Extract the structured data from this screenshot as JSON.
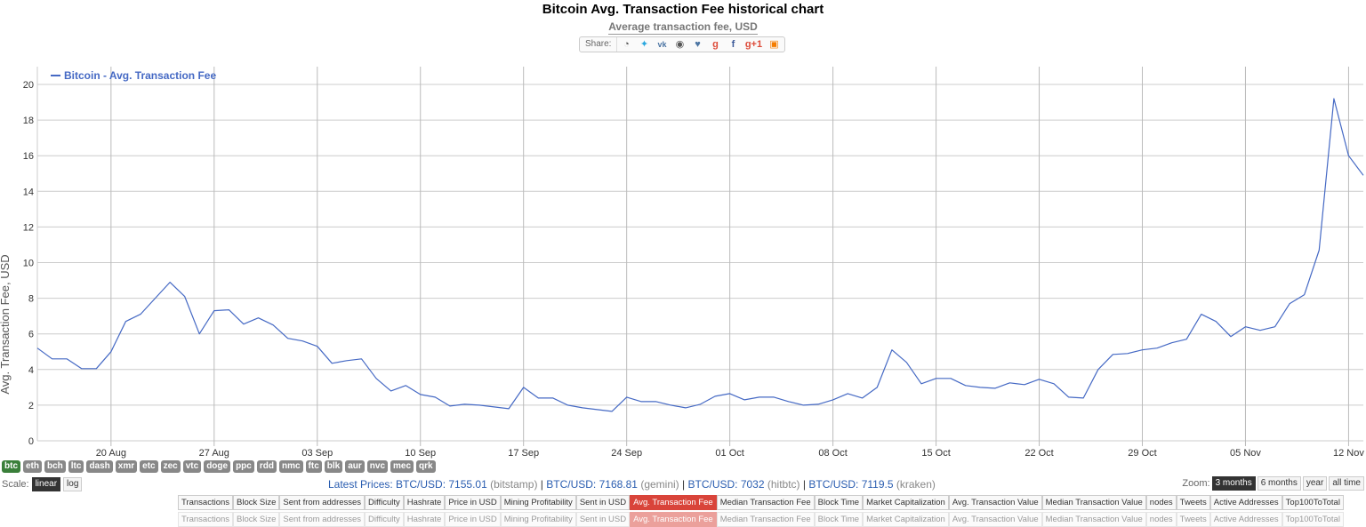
{
  "header": {
    "title": "Bitcoin Avg. Transaction Fee historical chart",
    "subtitle": "Average transaction fee, USD",
    "share_label": "Share:",
    "share_icons": [
      "reddit-icon",
      "twitter-icon",
      "vk-icon",
      "weibo-icon",
      "like-icon",
      "google-plus-icon",
      "facebook-icon",
      "google-plus-one-icon",
      "blogger-icon"
    ]
  },
  "chart_data": {
    "type": "line",
    "ylabel": "Avg. Transaction Fee, USD",
    "ylim": [
      0,
      20
    ],
    "yticks": [
      0,
      2,
      4,
      6,
      8,
      10,
      12,
      14,
      16,
      18,
      20
    ],
    "x_start": "2017-08-15",
    "x_end": "2017-11-13",
    "xticks": [
      {
        "date": "2017-08-20",
        "label": "20 Aug"
      },
      {
        "date": "2017-08-27",
        "label": "27 Aug"
      },
      {
        "date": "2017-09-03",
        "label": "03 Sep"
      },
      {
        "date": "2017-09-10",
        "label": "10 Sep"
      },
      {
        "date": "2017-09-17",
        "label": "17 Sep"
      },
      {
        "date": "2017-09-24",
        "label": "24 Sep"
      },
      {
        "date": "2017-10-01",
        "label": "01 Oct"
      },
      {
        "date": "2017-10-08",
        "label": "08 Oct"
      },
      {
        "date": "2017-10-15",
        "label": "15 Oct"
      },
      {
        "date": "2017-10-22",
        "label": "22 Oct"
      },
      {
        "date": "2017-10-29",
        "label": "29 Oct"
      },
      {
        "date": "2017-11-05",
        "label": "05 Nov"
      },
      {
        "date": "2017-11-12",
        "label": "12 Nov"
      }
    ],
    "grid": true,
    "legend_position": "top-left",
    "series": [
      {
        "name": "Bitcoin - Avg. Transaction Fee",
        "color": "#4569c4",
        "x": [
          "2017-08-15",
          "2017-08-16",
          "2017-08-17",
          "2017-08-18",
          "2017-08-19",
          "2017-08-20",
          "2017-08-21",
          "2017-08-22",
          "2017-08-23",
          "2017-08-24",
          "2017-08-25",
          "2017-08-26",
          "2017-08-27",
          "2017-08-28",
          "2017-08-29",
          "2017-08-30",
          "2017-08-31",
          "2017-09-01",
          "2017-09-02",
          "2017-09-03",
          "2017-09-04",
          "2017-09-05",
          "2017-09-06",
          "2017-09-07",
          "2017-09-08",
          "2017-09-09",
          "2017-09-10",
          "2017-09-11",
          "2017-09-12",
          "2017-09-13",
          "2017-09-14",
          "2017-09-15",
          "2017-09-16",
          "2017-09-17",
          "2017-09-18",
          "2017-09-19",
          "2017-09-20",
          "2017-09-21",
          "2017-09-22",
          "2017-09-23",
          "2017-09-24",
          "2017-09-25",
          "2017-09-26",
          "2017-09-27",
          "2017-09-28",
          "2017-09-29",
          "2017-09-30",
          "2017-10-01",
          "2017-10-02",
          "2017-10-03",
          "2017-10-04",
          "2017-10-05",
          "2017-10-06",
          "2017-10-07",
          "2017-10-08",
          "2017-10-09",
          "2017-10-10",
          "2017-10-11",
          "2017-10-12",
          "2017-10-13",
          "2017-10-14",
          "2017-10-15",
          "2017-10-16",
          "2017-10-17",
          "2017-10-18",
          "2017-10-19",
          "2017-10-20",
          "2017-10-21",
          "2017-10-22",
          "2017-10-23",
          "2017-10-24",
          "2017-10-25",
          "2017-10-26",
          "2017-10-27",
          "2017-10-28",
          "2017-10-29",
          "2017-10-30",
          "2017-10-31",
          "2017-11-01",
          "2017-11-02",
          "2017-11-03",
          "2017-11-04",
          "2017-11-05",
          "2017-11-06",
          "2017-11-07",
          "2017-11-08",
          "2017-11-09",
          "2017-11-10",
          "2017-11-11",
          "2017-11-12",
          "2017-11-13",
          "2017-11-14"
        ],
        "values": [
          5.2,
          4.6,
          4.6,
          4.05,
          4.05,
          5.0,
          6.7,
          7.1,
          8.0,
          8.9,
          8.1,
          6.0,
          7.3,
          7.35,
          6.55,
          6.9,
          6.5,
          5.75,
          5.6,
          5.3,
          4.35,
          4.5,
          4.6,
          3.5,
          2.8,
          3.1,
          2.6,
          2.45,
          1.95,
          2.05,
          2.0,
          1.9,
          1.8,
          3.0,
          2.4,
          2.4,
          2.0,
          1.85,
          1.75,
          1.65,
          2.45,
          2.2,
          2.2,
          2.0,
          1.85,
          2.05,
          2.5,
          2.65,
          2.3,
          2.45,
          2.45,
          2.2,
          2.0,
          2.05,
          2.3,
          2.65,
          2.4,
          3.0,
          5.1,
          4.4,
          3.2,
          3.5,
          3.5,
          3.1,
          3.0,
          2.95,
          3.25,
          3.15,
          3.45,
          3.2,
          2.45,
          2.4,
          4.0,
          4.85,
          4.9,
          5.1,
          5.2,
          5.5,
          5.7,
          7.1,
          6.7,
          5.85,
          6.4,
          6.2,
          6.4,
          7.7,
          8.2,
          10.7,
          19.2,
          16.0,
          14.9,
          14.9
        ]
      }
    ]
  },
  "coins": {
    "items": [
      "btc",
      "eth",
      "bch",
      "ltc",
      "dash",
      "xmr",
      "etc",
      "zec",
      "vtc",
      "doge",
      "ppc",
      "rdd",
      "nmc",
      "ftc",
      "blk",
      "aur",
      "nvc",
      "mec",
      "qrk"
    ],
    "active": "btc"
  },
  "scale": {
    "label": "Scale:",
    "options": [
      "linear",
      "log"
    ],
    "active": "linear"
  },
  "prices": {
    "label": "Latest Prices:",
    "items": [
      {
        "pair": "BTC/USD: 7155.01",
        "source": "(bitstamp)"
      },
      {
        "pair": "BTC/USD: 7168.81",
        "source": "(gemini)"
      },
      {
        "pair": "BTC/USD: 7032",
        "source": "(hitbtc)"
      },
      {
        "pair": "BTC/USD: 7119.5",
        "source": "(kraken)"
      }
    ]
  },
  "zoom": {
    "label": "Zoom:",
    "options": [
      "3 months",
      "6 months",
      "year",
      "all time"
    ],
    "active": "3 months"
  },
  "metrics_menu": {
    "items": [
      "Transactions",
      "Block Size",
      "Sent from addresses",
      "Difficulty",
      "Hashrate",
      "Price in USD",
      "Mining Profitability",
      "Sent in USD",
      "Avg. Transaction Fee",
      "Median Transaction Fee",
      "Block Time",
      "Market Capitalization",
      "Avg. Transaction Value",
      "Median Transaction Value",
      "nodes",
      "Tweets",
      "Active Addresses",
      "Top100ToTotal"
    ],
    "active": "Avg. Transaction Fee"
  }
}
